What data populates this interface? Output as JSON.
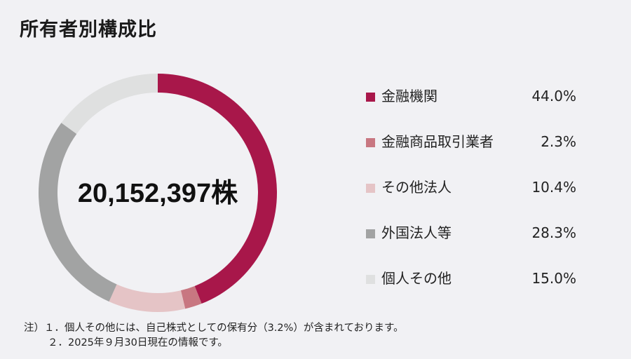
{
  "title": "所有者別構成比",
  "chart_data": {
    "type": "pie",
    "variant": "donut",
    "center_label": "20,152,397株",
    "slices": [
      {
        "label": "金融機関",
        "value": 44.0,
        "display": "44.0%",
        "color": "#a8174a"
      },
      {
        "label": "金融商品取引業者",
        "value": 2.3,
        "display": "2.3%",
        "color": "#c87781"
      },
      {
        "label": "その他法人",
        "value": 10.4,
        "display": "10.4%",
        "color": "#e5c4c6"
      },
      {
        "label": "外国法人等",
        "value": 28.3,
        "display": "28.3%",
        "color": "#a2a3a3"
      },
      {
        "label": "個人その他",
        "value": 15.0,
        "display": "15.0%",
        "color": "#dfe0e0"
      }
    ],
    "legend_position": "right",
    "start_angle": "top",
    "direction": "clockwise"
  },
  "notes": {
    "line1": "注）１．個人その他には、自己株式としての保有分（3.2%）が含まれております。",
    "line2": "２．2025年９月30日現在の情報です。"
  }
}
